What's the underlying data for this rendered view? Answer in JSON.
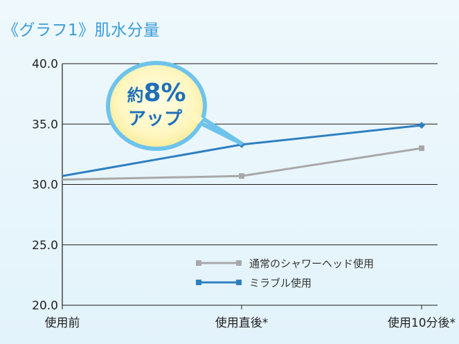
{
  "chart_data": {
    "type": "line",
    "title": "《グラフ1》肌水分量",
    "categories": [
      "使用前",
      "使用直後*",
      "使用10分後*"
    ],
    "ylim": [
      20.0,
      40.0
    ],
    "yticks": [
      "40.0",
      "35.0",
      "30.0",
      "25.0",
      "20.0"
    ],
    "grid": true,
    "legend_position": "bottom-right",
    "series": [
      {
        "name": "通常のシャワーヘッド使用",
        "values": [
          30.4,
          30.7,
          33.0
        ],
        "color": "#a8a8a8",
        "marker": "square"
      },
      {
        "name": "ミラブル使用",
        "values": [
          30.7,
          33.3,
          34.9
        ],
        "color": "#2e7fc1",
        "marker": "diamond"
      }
    ],
    "annotation": {
      "line1_prefix": "約",
      "line1_value": "8%",
      "line2": "アップ"
    }
  }
}
